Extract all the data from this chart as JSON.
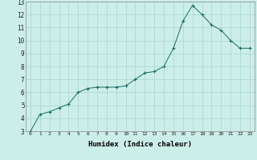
{
  "title": "",
  "xlabel": "Humidex (Indice chaleur)",
  "ylabel": "",
  "background_color": "#cceee8",
  "grid_color": "#aad4ce",
  "line_color": "#1a6e64",
  "marker_color": "#1a6e64",
  "xlim": [
    -0.5,
    23.5
  ],
  "ylim": [
    3,
    13
  ],
  "xticks": [
    0,
    1,
    2,
    3,
    4,
    5,
    6,
    7,
    8,
    9,
    10,
    11,
    12,
    13,
    14,
    15,
    16,
    17,
    18,
    19,
    20,
    21,
    22,
    23
  ],
  "yticks": [
    3,
    4,
    5,
    6,
    7,
    8,
    9,
    10,
    11,
    12,
    13
  ],
  "x": [
    0,
    1,
    2,
    3,
    4,
    5,
    6,
    7,
    8,
    9,
    10,
    11,
    12,
    13,
    14,
    15,
    16,
    17,
    18,
    19,
    20,
    21,
    22,
    23
  ],
  "y": [
    3.0,
    4.3,
    4.5,
    4.8,
    5.1,
    6.0,
    6.3,
    6.4,
    6.4,
    6.4,
    6.5,
    7.0,
    7.5,
    7.6,
    8.0,
    9.4,
    11.5,
    12.7,
    12.0,
    11.2,
    10.8,
    10.0,
    9.4,
    9.4
  ]
}
